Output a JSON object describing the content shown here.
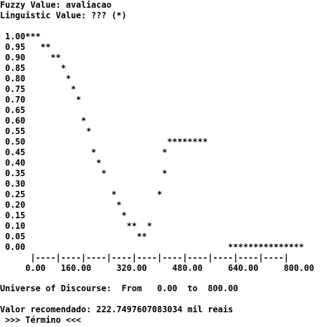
{
  "header": {
    "fuzzy_value": "Fuzzy Value: avaliacao",
    "linguistic_value": "Linguistic Value: ??? (*)"
  },
  "plot": {
    "rows": [
      " 1.00***",
      " 0.95   **",
      " 0.90     **",
      " 0.85       *",
      " 0.80        *",
      " 0.75         *",
      " 0.70          *",
      " 0.65",
      " 0.60           *",
      " 0.55            *",
      " 0.50                            ********",
      " 0.45             *             *",
      " 0.40              *",
      " 0.35               *           *",
      " 0.30",
      " 0.25                 *        *",
      " 0.20                  *",
      " 0.15                   *",
      " 0.10                    **  *",
      " 0.05                      **",
      " 0.00                                        ***************"
    ],
    "axis_ruler": "      |----|----|----|----|----|----|----|----|----|----|",
    "axis_labels": "     0.00   160.00     320.00     480.00     640.00     800.00"
  },
  "universe": "Universe of Discourse:  From   0.00  to  800.00",
  "result": "Valor recomendado: 222.7497607083034 mil reais",
  "footer": " >>> Término <<<"
}
